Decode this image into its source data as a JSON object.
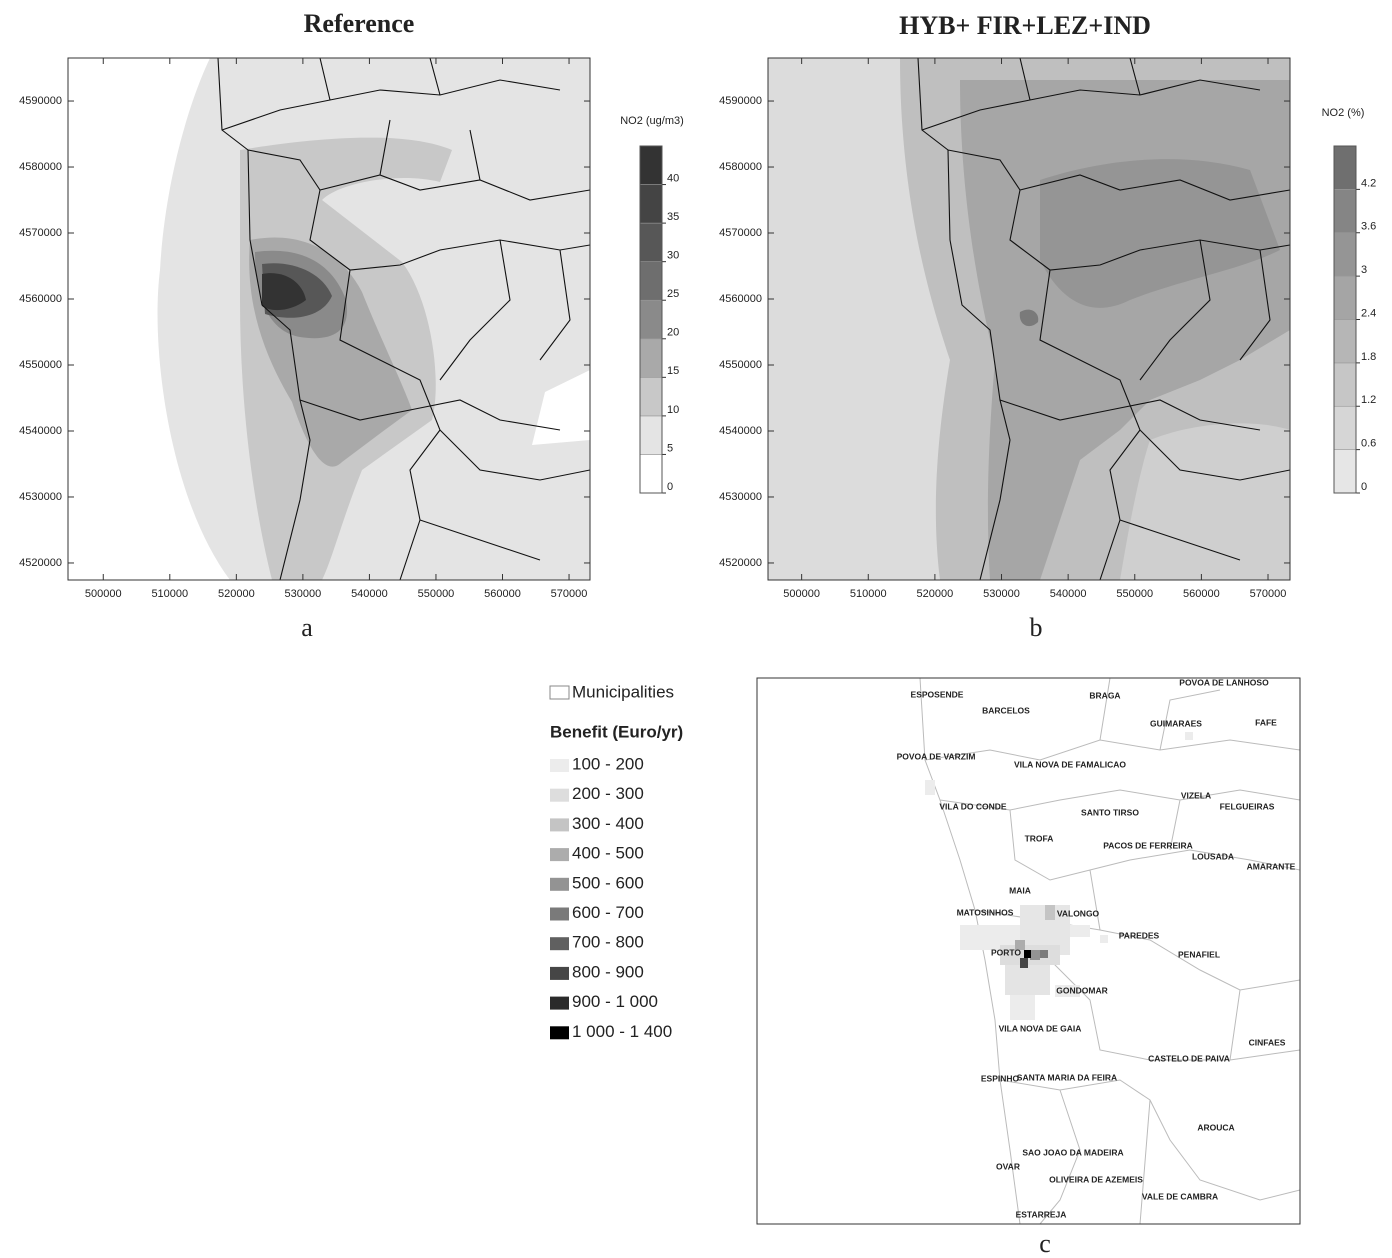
{
  "panels": [
    {
      "title": "Reference",
      "letter": "a",
      "xlim": [
        494700,
        573150
      ],
      "ylim": [
        4517420,
        4596520
      ],
      "xticks": [
        500000,
        510000,
        520000,
        530000,
        540000,
        550000,
        560000,
        570000
      ],
      "yticks": [
        4520000,
        4530000,
        4540000,
        4550000,
        4560000,
        4570000,
        4580000,
        4590000
      ],
      "colorbar": {
        "label": "NO2 (ug/m3)",
        "lim": [
          0,
          45
        ],
        "ticks": [
          0,
          5,
          10,
          15,
          20,
          25,
          30,
          35,
          40
        ],
        "colors": [
          "#ffffff",
          "#e4e4e4",
          "#c8c8c8",
          "#a9a9a9",
          "#8a8a8a",
          "#6e6e6e",
          "#575757",
          "#444444",
          "#333333"
        ]
      }
    },
    {
      "title": "HYB+ FIR+LEZ+IND",
      "letter": "b",
      "xlim": [
        494950,
        573300
      ],
      "ylim": [
        4517420,
        4596520
      ],
      "xticks": [
        500000,
        510000,
        520000,
        530000,
        540000,
        550000,
        560000,
        570000
      ],
      "yticks": [
        4520000,
        4530000,
        4540000,
        4550000,
        4560000,
        4570000,
        4580000,
        4590000
      ],
      "colorbar": {
        "label": "NO2 (%)",
        "lim": [
          0,
          4.8
        ],
        "ticks": [
          0,
          0.6,
          1.2,
          1.8,
          2.4,
          3,
          3.6,
          4.2
        ],
        "colors": [
          "#e6e6e6",
          "#d6d6d6",
          "#c6c6c6",
          "#b6b6b6",
          "#a5a5a5",
          "#959595",
          "#858585",
          "#6f6f6f"
        ]
      }
    }
  ],
  "panel_c": {
    "letter": "c",
    "legend": {
      "layer": "Municipalities",
      "title": "Benefit (Euro/yr)",
      "classes": [
        {
          "label": "100 - 200",
          "color": "#ececec"
        },
        {
          "label": "200 - 300",
          "color": "#dddddd"
        },
        {
          "label": "300 - 400",
          "color": "#c4c4c4"
        },
        {
          "label": "400 - 500",
          "color": "#acacac"
        },
        {
          "label": "500 - 600",
          "color": "#939393"
        },
        {
          "label": "600 - 700",
          "color": "#7a7a7a"
        },
        {
          "label": "700 - 800",
          "color": "#606060"
        },
        {
          "label": "800 - 900",
          "color": "#464646"
        },
        {
          "label": "900 - 1 000",
          "color": "#2a2a2a"
        },
        {
          "label": "1 000 - 1 400",
          "color": "#000000"
        }
      ]
    },
    "places": [
      "ESPOSENDE",
      "BARCELOS",
      "BRAGA",
      "POVOA DE LANHOSO",
      "GUIMARAES",
      "FAFE",
      "POVOA DE VARZIM",
      "VILA NOVA DE FAMALICAO",
      "VIZELA",
      "VILA DO CONDE",
      "SANTO TIRSO",
      "FELGUEIRAS",
      "TROFA",
      "PACOS DE FERREIRA",
      "LOUSADA",
      "AMARANTE",
      "MAIA",
      "MATOSINHOS",
      "VALONGO",
      "PAREDES",
      "PORTO",
      "PENAFIEL",
      "GONDOMAR",
      "VILA NOVA DE GAIA",
      "CINFAES",
      "CASTELO DE PAIVA",
      "ESPINHO",
      "SANTA MARIA DA FEIRA",
      "AROUCA",
      "SAO JOAO DA MADEIRA",
      "OVAR",
      "OLIVEIRA DE AZEMEIS",
      "VALE DE CAMBRA",
      "ESTARREJA"
    ]
  }
}
